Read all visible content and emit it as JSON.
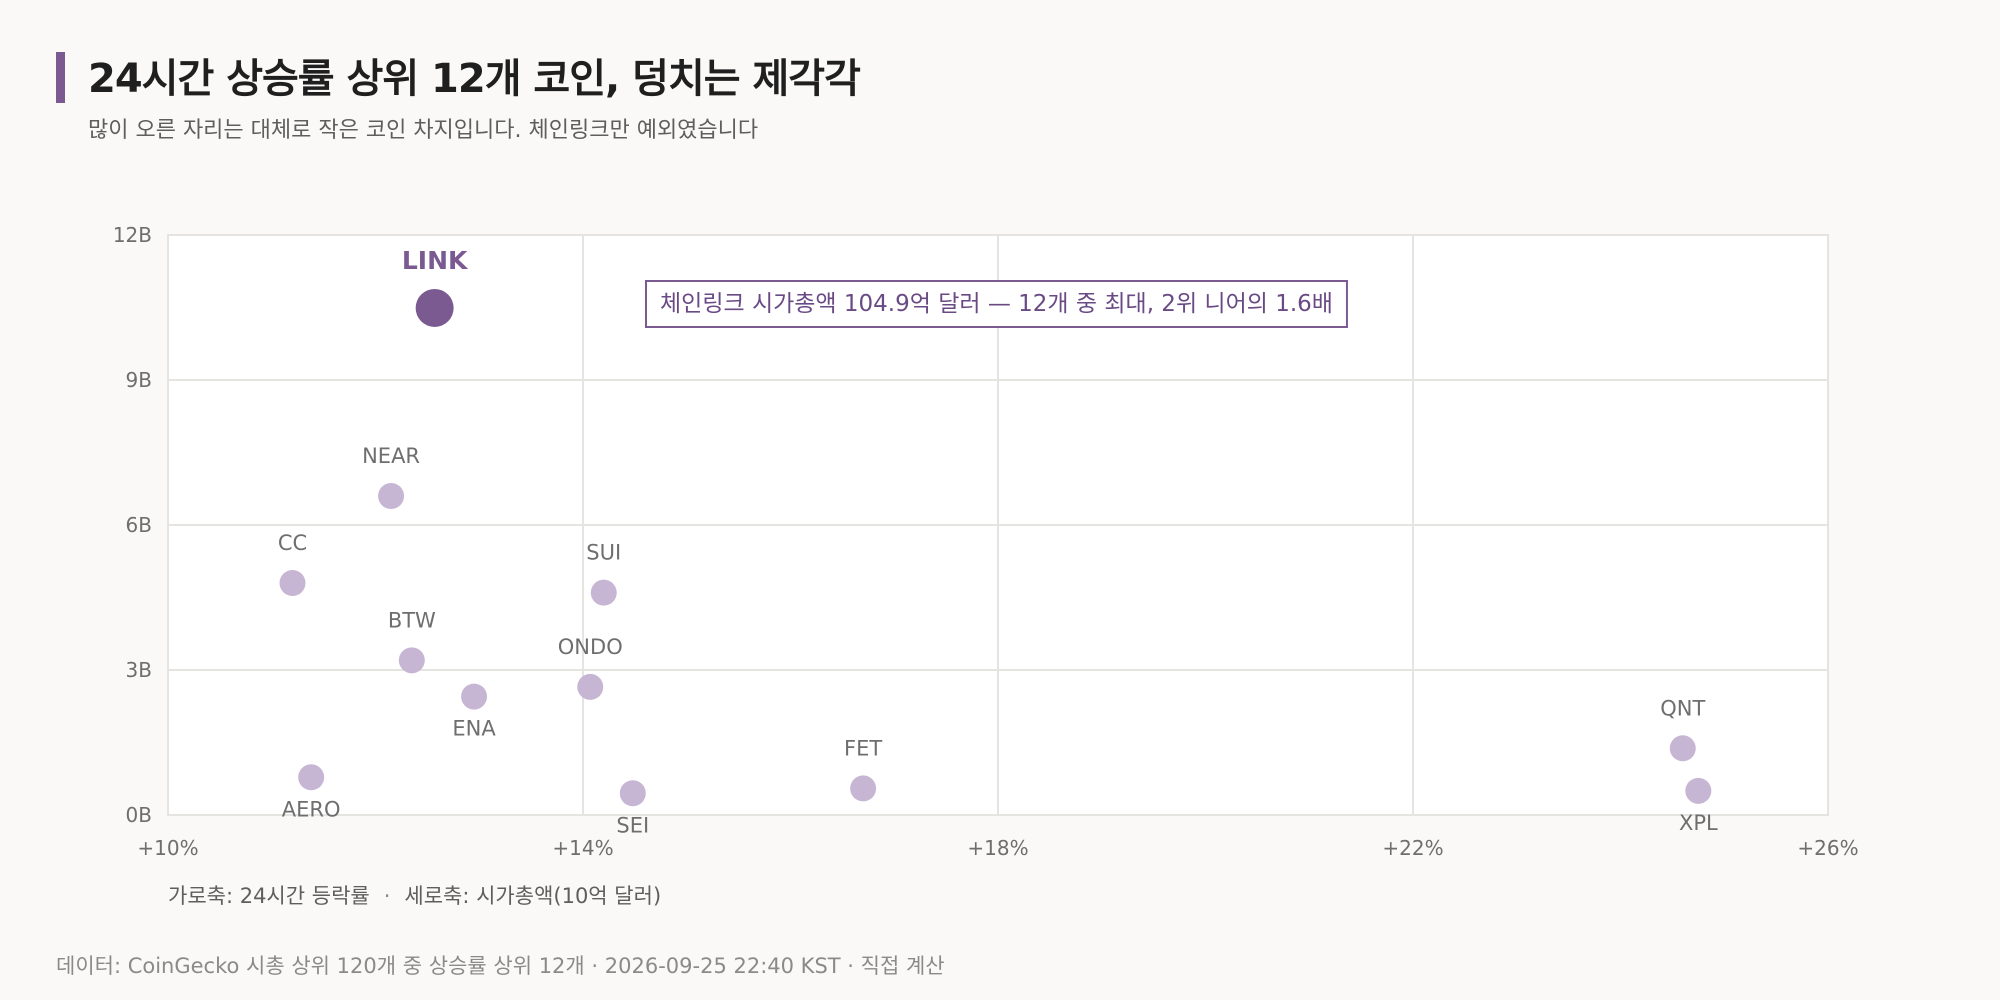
{
  "header": {
    "title": "24시간 상승률 상위 12개 코인, 덩치는 제각각",
    "subtitle": "많이 오른 자리는 대체로 작은 코인 차지입니다. 체인링크만 예외였습니다"
  },
  "axis_note": {
    "x": "가로축: 24시간 등락률",
    "sep": "·",
    "y": "세로축: 시가총액(10억 달러)"
  },
  "source": "데이터: CoinGecko 시총 상위 120개 중 상승률 상위 12개 · 2026-09-25 22:40 KST · 직접 계산",
  "colors": {
    "accent": "#7b5a92",
    "point": "#c7b6d3",
    "grid": "#e6e4e1",
    "plot_bg": "#ffffff"
  },
  "chart_data": {
    "type": "scatter",
    "xlim": [
      10,
      26
    ],
    "ylim": [
      0,
      12
    ],
    "x_ticks": [
      10,
      14,
      18,
      22,
      26
    ],
    "x_tick_labels": [
      "+10%",
      "+14%",
      "+18%",
      "+22%",
      "+26%"
    ],
    "y_ticks": [
      0,
      3,
      6,
      9,
      12
    ],
    "y_tick_labels": [
      "0B",
      "3B",
      "6B",
      "9B",
      "12B"
    ],
    "grid": true,
    "points": [
      {
        "label": "LINK",
        "x": 12.57,
        "y": 10.49,
        "highlight": true,
        "label_pos": "above"
      },
      {
        "label": "NEAR",
        "x": 12.15,
        "y": 6.6,
        "label_pos": "above"
      },
      {
        "label": "CC",
        "x": 11.2,
        "y": 4.8,
        "label_pos": "above"
      },
      {
        "label": "SUI",
        "x": 14.2,
        "y": 4.6,
        "label_pos": "above"
      },
      {
        "label": "BTW",
        "x": 12.35,
        "y": 3.2,
        "label_pos": "above"
      },
      {
        "label": "ENA",
        "x": 12.95,
        "y": 2.45,
        "label_pos": "below"
      },
      {
        "label": "ONDO",
        "x": 14.07,
        "y": 2.65,
        "label_pos": "above"
      },
      {
        "label": "AERO",
        "x": 11.38,
        "y": 0.78,
        "label_pos": "below"
      },
      {
        "label": "SEI",
        "x": 14.48,
        "y": 0.45,
        "label_pos": "below"
      },
      {
        "label": "FET",
        "x": 16.7,
        "y": 0.55,
        "label_pos": "above"
      },
      {
        "label": "QNT",
        "x": 24.6,
        "y": 1.38,
        "label_pos": "above"
      },
      {
        "label": "XPL",
        "x": 24.75,
        "y": 0.5,
        "label_pos": "below"
      }
    ],
    "annotation": {
      "text": "체인링크 시가총액 104.9억 달러 — 12개 중 최대, 2위 니어의 1.6배"
    }
  }
}
